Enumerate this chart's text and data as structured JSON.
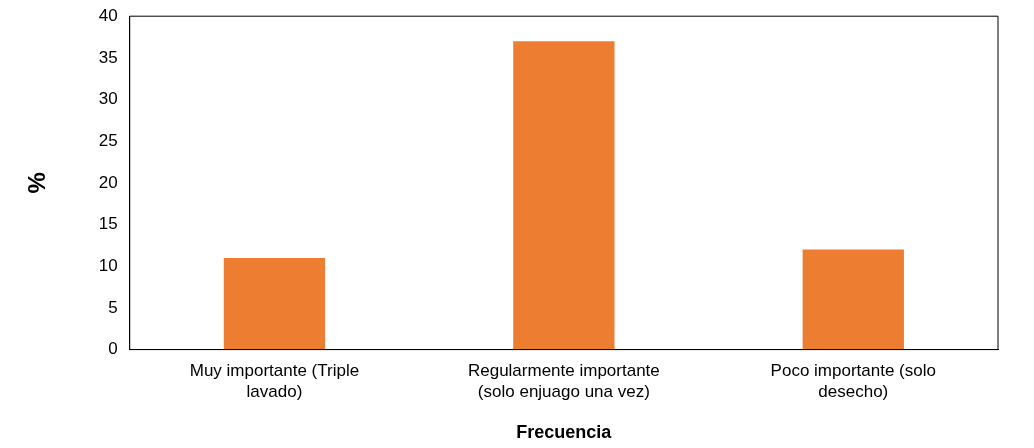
{
  "chart_data": {
    "type": "bar",
    "xlabel": "Frecuencia",
    "ylabel": "%",
    "categories": [
      "Muy importante (Triple lavado)",
      "Regularmente importante (solo enjuago una vez)",
      "Poco importante (solo desecho)"
    ],
    "values": [
      11,
      37,
      12
    ],
    "color": "#ed7d31",
    "ylim": [
      0,
      40
    ],
    "yticks": [
      0,
      5,
      10,
      15,
      20,
      25,
      30,
      35,
      40
    ],
    "grid": false,
    "legend": false
  }
}
